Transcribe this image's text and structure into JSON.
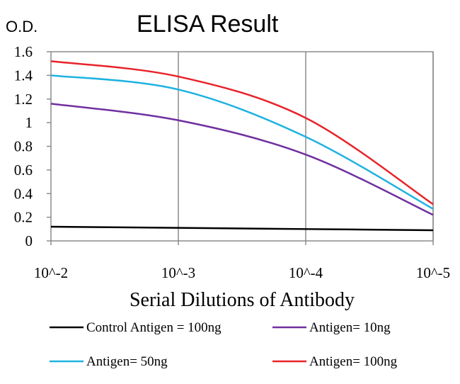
{
  "chart_data": {
    "type": "line",
    "title": "ELISA Result",
    "ylabel": "O.D.",
    "xlabel": "Serial Dilutions of Antibody",
    "categories": [
      "10^-2",
      "10^-3",
      "10^-4",
      "10^-5"
    ],
    "ylim": [
      0,
      1.6
    ],
    "yticks": [
      "0",
      "0.2",
      "0.4",
      "0.6",
      "0.8",
      "1",
      "1.2",
      "1.4",
      "1.6"
    ],
    "grid": "vertical",
    "legend_position": "bottom",
    "series": [
      {
        "name": "Control Antigen = 100ng",
        "color": "#000000",
        "values": [
          0.12,
          0.11,
          0.1,
          0.09
        ]
      },
      {
        "name": "Antigen= 10ng",
        "color": "#7030a0",
        "values": [
          1.16,
          1.02,
          0.73,
          0.22
        ]
      },
      {
        "name": "Antigen= 50ng",
        "color": "#1fb2e0",
        "values": [
          1.4,
          1.28,
          0.88,
          0.27
        ]
      },
      {
        "name": "Antigen= 100ng",
        "color": "#e8232a",
        "values": [
          1.52,
          1.39,
          1.04,
          0.31
        ]
      }
    ]
  }
}
